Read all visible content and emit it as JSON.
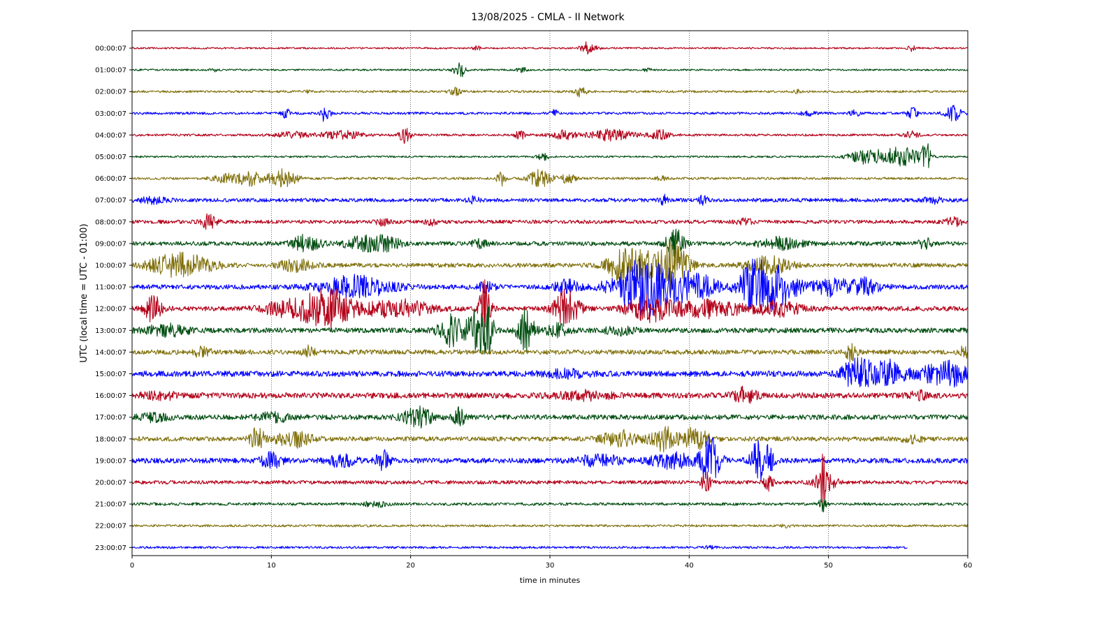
{
  "chart_data": {
    "type": "line",
    "title": "13/08/2025 - CMLA - II Network",
    "xlabel": "time in minutes",
    "ylabel": "UTC (local time = UTC - 01:00)",
    "xlim": [
      0,
      60
    ],
    "x_ticks": [
      0,
      10,
      20,
      30,
      40,
      50,
      60
    ],
    "x_tick_labels": [
      "0",
      "10",
      "20",
      "30",
      "40",
      "50",
      "60"
    ],
    "x_grid": true,
    "row_colors": [
      "#b30018",
      "#004d10",
      "#80700a",
      "#0000ff"
    ],
    "rows": [
      {
        "label": "00:00:07",
        "noise": 1.2,
        "end_minute": 60,
        "events": [
          [
            24.8,
            3,
            0.3
          ],
          [
            32.6,
            9,
            0.4
          ],
          [
            33.3,
            3,
            0.3
          ],
          [
            56.0,
            4,
            0.3
          ]
        ]
      },
      {
        "label": "01:00:07",
        "noise": 1.3,
        "end_minute": 60,
        "events": [
          [
            5.8,
            2.5,
            0.3
          ],
          [
            23.5,
            12,
            0.4
          ],
          [
            28.0,
            3,
            0.4
          ],
          [
            37.0,
            2,
            0.3
          ]
        ]
      },
      {
        "label": "02:00:07",
        "noise": 1.6,
        "end_minute": 60,
        "events": [
          [
            23.2,
            5,
            0.4
          ],
          [
            32.2,
            7,
            0.4
          ],
          [
            47.7,
            2.5,
            0.3
          ],
          [
            12.5,
            2,
            0.3
          ]
        ]
      },
      {
        "label": "03:00:07",
        "noise": 1.8,
        "end_minute": 60,
        "events": [
          [
            11.0,
            9,
            0.25
          ],
          [
            13.9,
            14,
            0.3
          ],
          [
            30.3,
            4,
            0.3
          ],
          [
            48.5,
            3,
            0.5
          ],
          [
            51.9,
            6,
            0.3
          ],
          [
            56.0,
            8,
            0.4
          ],
          [
            59.0,
            10,
            0.6
          ]
        ]
      },
      {
        "label": "04:00:07",
        "noise": 1.6,
        "end_minute": 60,
        "events": [
          [
            11.5,
            4,
            1.2
          ],
          [
            15.0,
            6,
            1.5
          ],
          [
            19.6,
            12,
            0.4
          ],
          [
            27.9,
            6,
            0.4
          ],
          [
            31.0,
            6,
            1.0
          ],
          [
            34.5,
            8,
            1.5
          ],
          [
            37.9,
            7,
            0.7
          ],
          [
            56.0,
            5,
            0.5
          ]
        ]
      },
      {
        "label": "05:00:07",
        "noise": 1.3,
        "end_minute": 60,
        "events": [
          [
            29.5,
            5,
            0.4
          ],
          [
            52.8,
            10,
            1.3
          ],
          [
            55.3,
            14,
            1.3
          ],
          [
            57.0,
            20,
            0.3
          ]
        ]
      },
      {
        "label": "06:00:07",
        "noise": 1.7,
        "end_minute": 60,
        "events": [
          [
            6.8,
            6,
            1.0
          ],
          [
            8.5,
            10,
            0.8
          ],
          [
            10.8,
            13,
            1.0
          ],
          [
            26.5,
            10,
            0.3
          ],
          [
            29.3,
            12,
            0.8
          ],
          [
            31.3,
            6,
            0.6
          ],
          [
            38.0,
            3,
            0.4
          ]
        ]
      },
      {
        "label": "07:00:07",
        "noise": 2.6,
        "end_minute": 60,
        "events": [
          [
            1.5,
            4,
            1.0
          ],
          [
            24.5,
            4,
            0.4
          ],
          [
            38.2,
            7,
            0.3
          ],
          [
            41.0,
            6,
            0.3
          ],
          [
            57.5,
            4,
            0.8
          ]
        ]
      },
      {
        "label": "08:00:07",
        "noise": 2.6,
        "end_minute": 60,
        "events": [
          [
            5.5,
            11,
            0.5
          ],
          [
            18.0,
            4,
            0.5
          ],
          [
            21.5,
            4,
            0.4
          ],
          [
            44.0,
            4,
            0.6
          ],
          [
            59.0,
            6,
            0.6
          ]
        ]
      },
      {
        "label": "09:00:07",
        "noise": 3.0,
        "end_minute": 60,
        "events": [
          [
            12.5,
            12,
            1.0
          ],
          [
            16.5,
            10,
            1.2
          ],
          [
            18.3,
            9,
            1.0
          ],
          [
            25.0,
            5,
            0.6
          ],
          [
            39.0,
            22,
            0.6
          ],
          [
            46.5,
            8,
            1.5
          ],
          [
            57.0,
            8,
            0.5
          ]
        ]
      },
      {
        "label": "10:00:07",
        "noise": 3.0,
        "end_minute": 60,
        "events": [
          [
            3.5,
            16,
            2.2
          ],
          [
            11.8,
            8,
            1.2
          ],
          [
            35.0,
            14,
            1.0
          ],
          [
            36.5,
            20,
            1.5
          ],
          [
            38.5,
            24,
            0.8
          ],
          [
            39.2,
            18,
            1.0
          ],
          [
            45.7,
            12,
            1.5
          ]
        ]
      },
      {
        "label": "11:00:07",
        "noise": 3.3,
        "end_minute": 60,
        "events": [
          [
            16.0,
            15,
            2.5
          ],
          [
            25.5,
            8,
            0.6
          ],
          [
            31.2,
            9,
            0.9
          ],
          [
            36.8,
            40,
            2.2
          ],
          [
            40.5,
            18,
            1.5
          ],
          [
            44.5,
            28,
            1.0
          ],
          [
            46.2,
            30,
            1.5
          ],
          [
            50.1,
            12,
            1.2
          ],
          [
            52.5,
            12,
            1.2
          ]
        ]
      },
      {
        "label": "12:00:07",
        "noise": 3.3,
        "end_minute": 60,
        "events": [
          [
            1.5,
            18,
            0.6
          ],
          [
            11.5,
            12,
            2.0
          ],
          [
            14.2,
            28,
            1.5
          ],
          [
            19.0,
            12,
            2.5
          ],
          [
            25.3,
            40,
            0.4
          ],
          [
            31.2,
            26,
            0.9
          ],
          [
            37.2,
            18,
            1.6
          ],
          [
            41.5,
            12,
            2.5
          ],
          [
            46.5,
            10,
            1.5
          ]
        ]
      },
      {
        "label": "13:00:07",
        "noise": 3.6,
        "end_minute": 60,
        "events": [
          [
            2.5,
            8,
            1.5
          ],
          [
            23.0,
            22,
            0.9
          ],
          [
            24.8,
            30,
            0.7
          ],
          [
            25.6,
            24,
            0.4
          ],
          [
            28.3,
            30,
            0.6
          ],
          [
            30.5,
            8,
            0.8
          ],
          [
            35.0,
            5,
            1.0
          ]
        ]
      },
      {
        "label": "14:00:07",
        "noise": 3.3,
        "end_minute": 60,
        "events": [
          [
            5.0,
            7,
            0.6
          ],
          [
            12.7,
            9,
            0.4
          ],
          [
            51.6,
            12,
            0.4
          ],
          [
            59.8,
            12,
            0.4
          ]
        ]
      },
      {
        "label": "15:00:07",
        "noise": 4.0,
        "end_minute": 60,
        "events": [
          [
            51.5,
            12,
            0.7
          ],
          [
            52.5,
            18,
            0.8
          ],
          [
            54.3,
            18,
            1.0
          ],
          [
            57.5,
            10,
            1.5
          ],
          [
            59.0,
            12,
            1.0
          ],
          [
            31.0,
            5,
            1.5
          ]
        ]
      },
      {
        "label": "16:00:07",
        "noise": 4.0,
        "end_minute": 60,
        "events": [
          [
            2.0,
            5,
            1.2
          ],
          [
            32.5,
            5,
            2.0
          ],
          [
            44.0,
            10,
            0.8
          ],
          [
            56.5,
            5,
            0.6
          ]
        ]
      },
      {
        "label": "17:00:07",
        "noise": 3.6,
        "end_minute": 60,
        "events": [
          [
            1.5,
            5,
            1.0
          ],
          [
            10.2,
            6,
            1.2
          ],
          [
            20.5,
            14,
            1.0
          ],
          [
            23.5,
            12,
            0.4
          ]
        ]
      },
      {
        "label": "18:00:07",
        "noise": 3.3,
        "end_minute": 60,
        "events": [
          [
            9.0,
            16,
            0.5
          ],
          [
            11.5,
            12,
            1.3
          ],
          [
            35.0,
            12,
            1.2
          ],
          [
            38.2,
            16,
            1.0
          ],
          [
            40.5,
            16,
            0.9
          ],
          [
            56.0,
            5,
            0.7
          ]
        ]
      },
      {
        "label": "19:00:07",
        "noise": 3.6,
        "end_minute": 60,
        "events": [
          [
            10.0,
            12,
            0.7
          ],
          [
            15.0,
            8,
            1.0
          ],
          [
            18.0,
            14,
            0.5
          ],
          [
            33.5,
            8,
            1.5
          ],
          [
            38.8,
            10,
            1.5
          ],
          [
            41.5,
            32,
            0.7
          ],
          [
            45.0,
            28,
            0.6
          ],
          [
            45.8,
            16,
            0.3
          ]
        ]
      },
      {
        "label": "20:00:07",
        "noise": 2.6,
        "end_minute": 60,
        "events": [
          [
            41.2,
            16,
            0.3
          ],
          [
            45.7,
            12,
            0.3
          ],
          [
            49.6,
            28,
            0.25
          ],
          [
            49.7,
            12,
            0.8
          ]
        ]
      },
      {
        "label": "21:00:07",
        "noise": 2.0,
        "end_minute": 60,
        "events": [
          [
            17.5,
            4,
            0.8
          ],
          [
            49.6,
            12,
            0.25
          ]
        ]
      },
      {
        "label": "22:00:07",
        "noise": 1.6,
        "end_minute": 60,
        "events": [
          [
            47.0,
            2,
            0.4
          ]
        ]
      },
      {
        "label": "23:00:07",
        "noise": 1.6,
        "end_minute": 55.7,
        "events": [
          [
            41.5,
            2,
            0.4
          ]
        ]
      }
    ]
  }
}
